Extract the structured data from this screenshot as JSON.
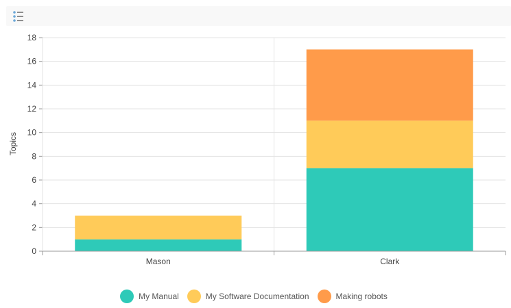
{
  "toolbar": {
    "menu_icon": "list-menu-icon"
  },
  "colors": {
    "My Manual": "#2ecab8",
    "My Software Documentation": "#ffcb59",
    "Making robots": "#ff9b4a",
    "grid": "#e3e3e3",
    "axis": "#999999"
  },
  "chart_data": {
    "type": "bar",
    "stacked": true,
    "categories": [
      "Mason",
      "Clark"
    ],
    "series": [
      {
        "name": "My Manual",
        "values": [
          1,
          7
        ]
      },
      {
        "name": "My Software Documentation",
        "values": [
          2,
          4
        ]
      },
      {
        "name": "Making robots",
        "values": [
          0,
          6
        ]
      }
    ],
    "ylabel": "Topics",
    "xlabel": "",
    "ylim": [
      0,
      18
    ],
    "yticks": [
      0,
      2,
      4,
      6,
      8,
      10,
      12,
      14,
      16,
      18
    ],
    "grid": true,
    "legend_position": "bottom-center"
  }
}
